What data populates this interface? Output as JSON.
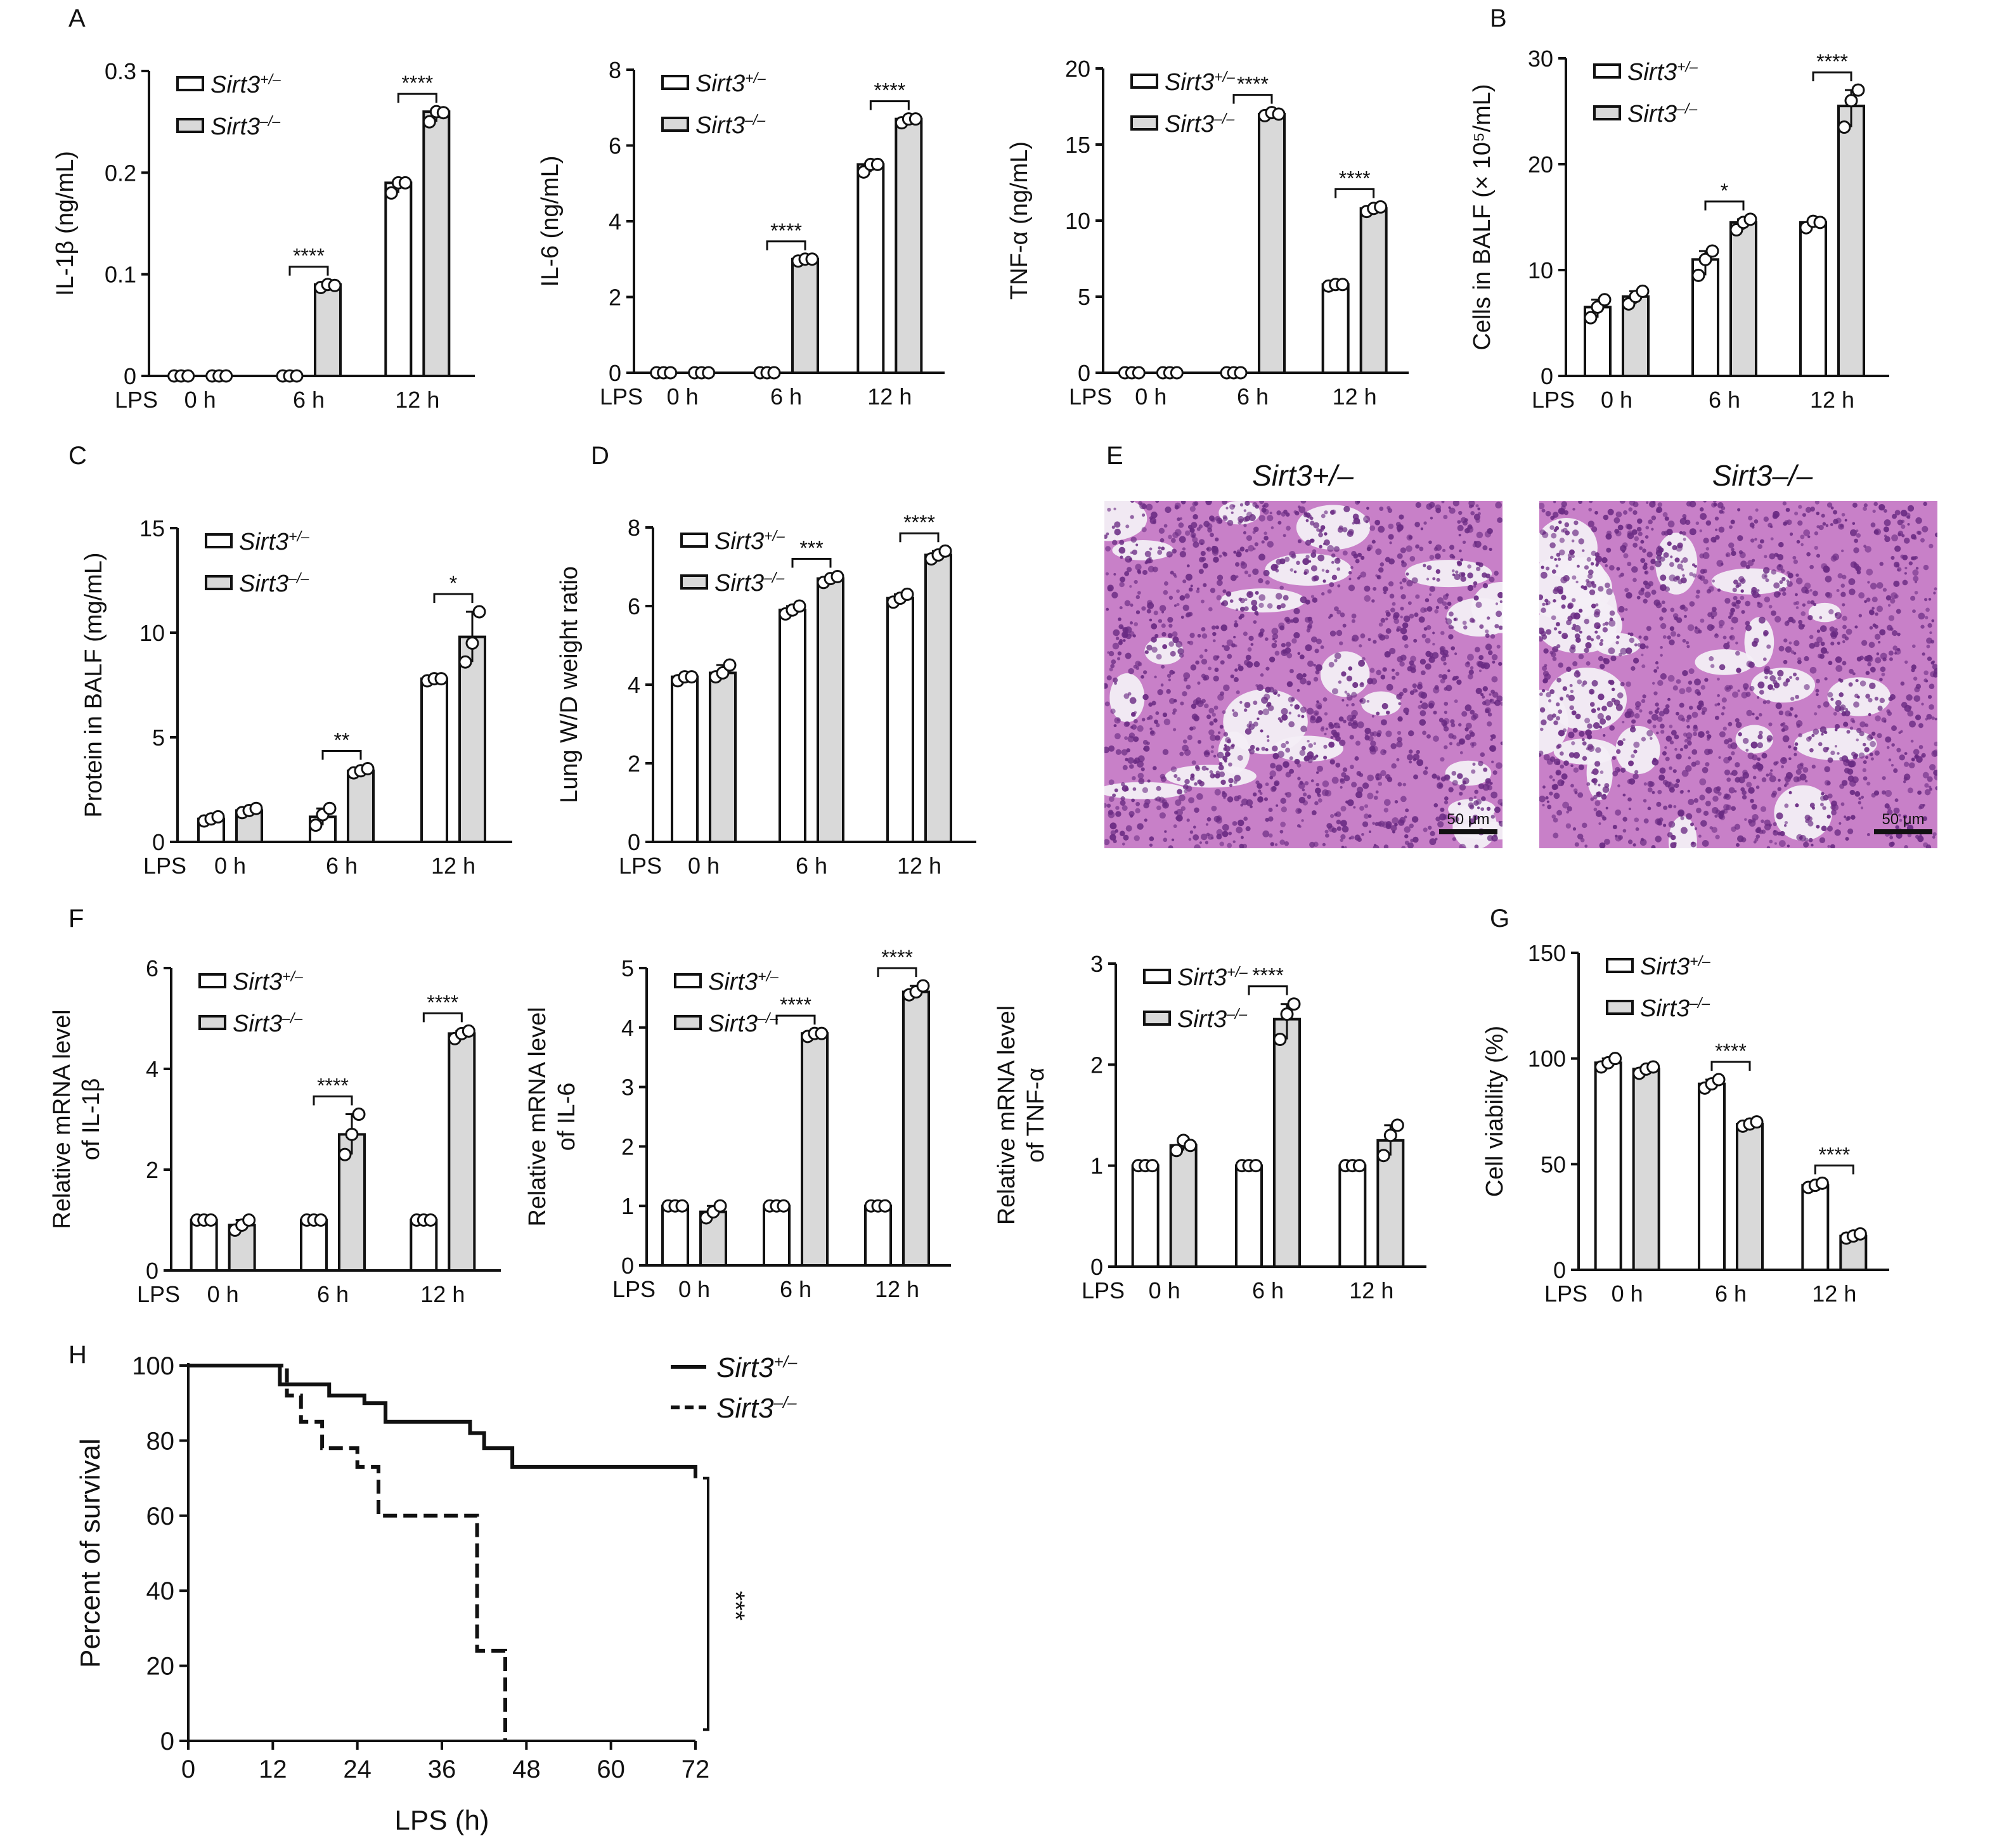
{
  "panel_letters": [
    "A",
    "B",
    "C",
    "D",
    "E",
    "F",
    "G",
    "H"
  ],
  "genotype_labels": [
    "Sirt3",
    "+/–",
    "Sirt3",
    "–/–"
  ],
  "lps_label": "LPS",
  "histology": {
    "left_title": "Sirt3+/–",
    "right_title": "Sirt3–/–",
    "scale_bar_label": "50 μm",
    "stain_colors": [
      "#c880c8",
      "#6a2b83",
      "#f3eef6"
    ]
  },
  "colors": {
    "control_fill": "#ffffff",
    "knockout_fill": "#d9d9d9",
    "stroke": "#111111"
  },
  "chart_data": [
    {
      "panel": "A",
      "type": "bar",
      "title": "",
      "xlabel": "",
      "ylabel": "IL-1β (ng/mL)",
      "categories": [
        "0 h",
        "6 h",
        "12 h"
      ],
      "ylim": [
        0,
        0.3
      ],
      "yticks": [
        "0",
        "0.1",
        "0.2",
        "0.3"
      ],
      "series": [
        {
          "name": "Sirt3+/–",
          "values": [
            0,
            0,
            0.19
          ],
          "points": [
            [
              0,
              0,
              0
            ],
            [
              0,
              0,
              0
            ],
            [
              0.18,
              0.19,
              0.19
            ]
          ]
        },
        {
          "name": "Sirt3–/–",
          "values": [
            0,
            0.09,
            0.26
          ],
          "points": [
            [
              0,
              0,
              0
            ],
            [
              0.087,
              0.09,
              0.089
            ],
            [
              0.25,
              0.26,
              0.259
            ]
          ]
        }
      ],
      "significance": [
        "",
        "****",
        "****"
      ],
      "legend": "top-left",
      "grid": false
    },
    {
      "panel": "A",
      "type": "bar",
      "title": "",
      "xlabel": "",
      "ylabel": "IL-6 (ng/mL)",
      "categories": [
        "0 h",
        "6 h",
        "12 h"
      ],
      "ylim": [
        0,
        8
      ],
      "yticks": [
        "0",
        "2",
        "4",
        "6",
        "8"
      ],
      "series": [
        {
          "name": "Sirt3+/–",
          "values": [
            0,
            0,
            5.5
          ],
          "points": [
            [
              0,
              0,
              0
            ],
            [
              0,
              0,
              0
            ],
            [
              5.3,
              5.5,
              5.5
            ]
          ]
        },
        {
          "name": "Sirt3–/–",
          "values": [
            0,
            3.0,
            6.7
          ],
          "points": [
            [
              0,
              0,
              0
            ],
            [
              2.95,
              3.0,
              3.0
            ],
            [
              6.6,
              6.7,
              6.7
            ]
          ]
        }
      ],
      "significance": [
        "",
        "****",
        "****"
      ],
      "legend": "top-left",
      "grid": false
    },
    {
      "panel": "A",
      "type": "bar",
      "title": "",
      "xlabel": "",
      "ylabel": "TNF-α (ng/mL)",
      "categories": [
        "0 h",
        "6 h",
        "12 h"
      ],
      "ylim": [
        0,
        20
      ],
      "yticks": [
        "0",
        "5",
        "10",
        "15",
        "20"
      ],
      "series": [
        {
          "name": "Sirt3+/–",
          "values": [
            0,
            0,
            5.8
          ],
          "points": [
            [
              0,
              0,
              0
            ],
            [
              0,
              0,
              0
            ],
            [
              5.7,
              5.8,
              5.8
            ]
          ]
        },
        {
          "name": "Sirt3–/–",
          "values": [
            0,
            17.0,
            10.8
          ],
          "points": [
            [
              0,
              0,
              0
            ],
            [
              16.9,
              17.1,
              17.0
            ],
            [
              10.6,
              10.8,
              10.9
            ]
          ]
        }
      ],
      "significance": [
        "",
        "****",
        "****"
      ],
      "legend": "top-left",
      "grid": false
    },
    {
      "panel": "B",
      "type": "bar",
      "title": "",
      "xlabel": "",
      "ylabel": "Cells in BALF (× 10⁵/mL)",
      "categories": [
        "0 h",
        "6 h",
        "12 h"
      ],
      "ylim": [
        0,
        30
      ],
      "yticks": [
        "0",
        "10",
        "20",
        "30"
      ],
      "series": [
        {
          "name": "Sirt3+/–",
          "values": [
            6.5,
            11,
            14.5
          ],
          "points": [
            [
              5.5,
              6.5,
              7.2
            ],
            [
              9.5,
              11,
              11.8
            ],
            [
              14.0,
              14.6,
              14.5
            ]
          ]
        },
        {
          "name": "Sirt3–/–",
          "values": [
            7.5,
            14.5,
            25.5
          ],
          "points": [
            [
              6.8,
              7.5,
              8.0
            ],
            [
              13.8,
              14.5,
              14.8
            ],
            [
              23.5,
              26,
              27.0
            ]
          ]
        }
      ],
      "significance": [
        "",
        "*",
        "****"
      ],
      "legend": "top-left",
      "grid": false
    },
    {
      "panel": "C",
      "type": "bar",
      "title": "",
      "xlabel": "",
      "ylabel": "Protein in BALF (mg/mL)",
      "categories": [
        "0 h",
        "6 h",
        "12 h"
      ],
      "ylim": [
        0,
        15
      ],
      "yticks": [
        "0",
        "5",
        "10",
        "15"
      ],
      "series": [
        {
          "name": "Sirt3+/–",
          "values": [
            1.1,
            1.2,
            7.8
          ],
          "points": [
            [
              1.0,
              1.1,
              1.2
            ],
            [
              0.8,
              1.3,
              1.6
            ],
            [
              7.7,
              7.8,
              7.8
            ]
          ]
        },
        {
          "name": "Sirt3–/–",
          "values": [
            1.5,
            3.4,
            9.8
          ],
          "points": [
            [
              1.4,
              1.5,
              1.6
            ],
            [
              3.3,
              3.4,
              3.5
            ],
            [
              8.6,
              9.5,
              11.0
            ]
          ]
        }
      ],
      "significance": [
        "",
        "**",
        "*"
      ],
      "legend": "top-left",
      "grid": false
    },
    {
      "panel": "D",
      "type": "bar",
      "title": "",
      "xlabel": "",
      "ylabel": "Lung W/D weight ratio",
      "categories": [
        "0 h",
        "6 h",
        "12 h"
      ],
      "ylim": [
        0,
        8
      ],
      "yticks": [
        "0",
        "2",
        "4",
        "6",
        "8"
      ],
      "series": [
        {
          "name": "Sirt3+/–",
          "values": [
            4.2,
            5.9,
            6.2
          ],
          "points": [
            [
              4.1,
              4.2,
              4.2
            ],
            [
              5.8,
              5.9,
              6.0
            ],
            [
              6.1,
              6.2,
              6.3
            ]
          ]
        },
        {
          "name": "Sirt3–/–",
          "values": [
            4.3,
            6.7,
            7.3
          ],
          "points": [
            [
              4.2,
              4.3,
              4.5
            ],
            [
              6.6,
              6.7,
              6.75
            ],
            [
              7.2,
              7.3,
              7.4
            ]
          ]
        }
      ],
      "significance": [
        "",
        "***",
        "****"
      ],
      "legend": "top-left",
      "grid": false
    },
    {
      "panel": "F",
      "type": "bar",
      "title": "",
      "xlabel": "",
      "ylabel": "Relative mRNA level of IL-1β",
      "categories": [
        "0 h",
        "6 h",
        "12 h"
      ],
      "ylim": [
        0,
        6
      ],
      "yticks": [
        "0",
        "2",
        "4",
        "6"
      ],
      "series": [
        {
          "name": "Sirt3+/–",
          "values": [
            1,
            1,
            1
          ],
          "points": [
            [
              1,
              1,
              1
            ],
            [
              1,
              1,
              1
            ],
            [
              1,
              1,
              1
            ]
          ]
        },
        {
          "name": "Sirt3–/–",
          "values": [
            0.9,
            2.7,
            4.7
          ],
          "points": [
            [
              0.8,
              0.9,
              1.0
            ],
            [
              2.3,
              2.7,
              3.1
            ],
            [
              4.6,
              4.7,
              4.75
            ]
          ]
        }
      ],
      "significance": [
        "",
        "****",
        "****"
      ],
      "legend": "top-left",
      "grid": false
    },
    {
      "panel": "F",
      "type": "bar",
      "title": "",
      "xlabel": "",
      "ylabel": "Relative mRNA level of IL-6",
      "categories": [
        "0 h",
        "6 h",
        "12 h"
      ],
      "ylim": [
        0,
        5
      ],
      "yticks": [
        "0",
        "1",
        "2",
        "3",
        "4",
        "5"
      ],
      "series": [
        {
          "name": "Sirt3+/–",
          "values": [
            1,
            1,
            1
          ],
          "points": [
            [
              1,
              1,
              1
            ],
            [
              1,
              1,
              1
            ],
            [
              1,
              1,
              1
            ]
          ]
        },
        {
          "name": "Sirt3–/–",
          "values": [
            0.9,
            3.9,
            4.6
          ],
          "points": [
            [
              0.8,
              0.9,
              1.0
            ],
            [
              3.85,
              3.9,
              3.9
            ],
            [
              4.55,
              4.6,
              4.7
            ]
          ]
        }
      ],
      "significance": [
        "",
        "****",
        "****"
      ],
      "legend": "top-left",
      "grid": false
    },
    {
      "panel": "F",
      "type": "bar",
      "title": "",
      "xlabel": "",
      "ylabel": "Relative mRNA level of TNF-α",
      "categories": [
        "0 h",
        "6 h",
        "12 h"
      ],
      "ylim": [
        0,
        3
      ],
      "yticks": [
        "0",
        "1",
        "2",
        "3"
      ],
      "series": [
        {
          "name": "Sirt3+/–",
          "values": [
            1,
            1,
            1
          ],
          "points": [
            [
              1,
              1,
              1
            ],
            [
              1,
              1,
              1
            ],
            [
              1,
              1,
              1
            ]
          ]
        },
        {
          "name": "Sirt3–/–",
          "values": [
            1.2,
            2.45,
            1.25
          ],
          "points": [
            [
              1.15,
              1.25,
              1.2
            ],
            [
              2.25,
              2.5,
              2.6
            ],
            [
              1.1,
              1.3,
              1.4
            ]
          ]
        }
      ],
      "significance": [
        "",
        "****",
        ""
      ],
      "legend": "top-left",
      "grid": false
    },
    {
      "panel": "G",
      "type": "bar",
      "title": "",
      "xlabel": "",
      "ylabel": "Cell viability (%)",
      "categories": [
        "0 h",
        "6 h",
        "12 h"
      ],
      "ylim": [
        0,
        150
      ],
      "yticks": [
        "0",
        "50",
        "100",
        "150"
      ],
      "series": [
        {
          "name": "Sirt3+/–",
          "values": [
            98,
            88,
            40
          ],
          "points": [
            [
              96,
              98,
              100
            ],
            [
              86,
              88,
              90
            ],
            [
              39,
              40,
              41
            ]
          ]
        },
        {
          "name": "Sirt3–/–",
          "values": [
            95,
            69,
            16
          ],
          "points": [
            [
              93,
              95,
              96
            ],
            [
              68,
              69,
              70
            ],
            [
              15,
              16,
              17
            ]
          ]
        }
      ],
      "significance": [
        "",
        "****",
        "****"
      ],
      "legend": "top-left",
      "grid": false
    },
    {
      "panel": "H",
      "type": "line",
      "title": "",
      "xlabel": "LPS (h)",
      "ylabel": "Percent of survival",
      "xlim": [
        0,
        72
      ],
      "ylim": [
        0,
        100
      ],
      "xticks": [
        "0",
        "12",
        "24",
        "36",
        "48",
        "60",
        "72"
      ],
      "yticks": [
        "0",
        "20",
        "40",
        "60",
        "80",
        "100"
      ],
      "series": [
        {
          "name": "Sirt3+/–",
          "style": "solid",
          "x": [
            0,
            12,
            13,
            18,
            20,
            25,
            28,
            35,
            40,
            42,
            46,
            72
          ],
          "y": [
            100,
            100,
            95,
            95,
            92,
            90,
            85,
            85,
            82,
            78,
            73,
            70
          ]
        },
        {
          "name": "Sirt3–/–",
          "style": "dashed",
          "x": [
            0,
            12,
            14,
            16,
            19,
            24,
            27,
            40,
            41,
            45
          ],
          "y": [
            100,
            100,
            92,
            85,
            78,
            73,
            60,
            60,
            24,
            0
          ]
        }
      ],
      "significance": "***",
      "legend": "top-right",
      "grid": false
    }
  ]
}
